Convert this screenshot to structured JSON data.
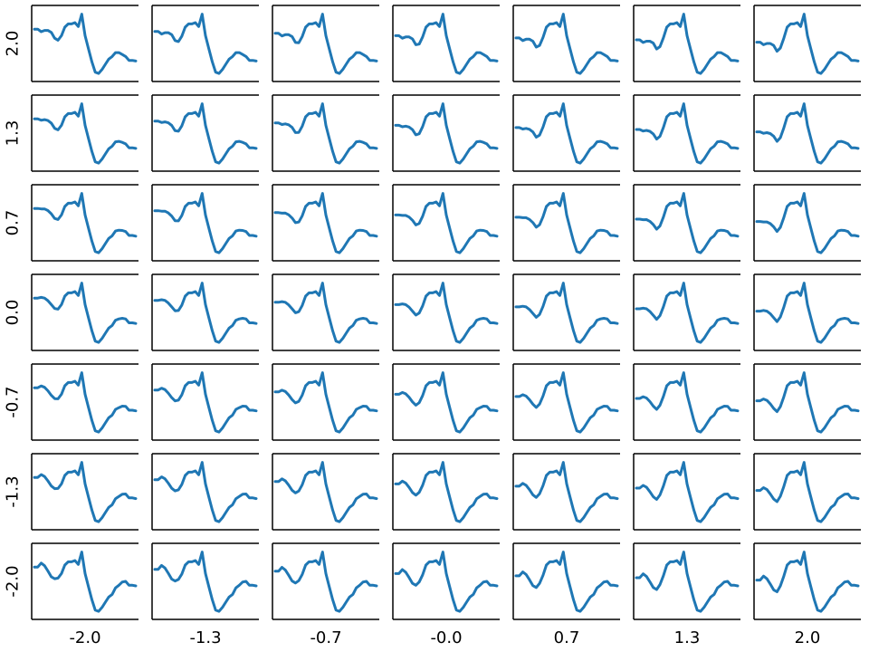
{
  "chart_data": {
    "type": "line",
    "layout": "small-multiples 7x7",
    "line_color": "#1f77b4",
    "axis_color": "#000000",
    "grid": false,
    "row_labels": [
      "2.0",
      "1.3",
      "0.7",
      "0.0",
      "-0.7",
      "-1.3",
      "-2.0"
    ],
    "col_labels": [
      "-2.0",
      "-1.3",
      "-0.7",
      "-0.0",
      "0.7",
      "1.3",
      "2.0"
    ],
    "x": [
      0,
      1,
      2,
      3,
      4,
      5,
      6,
      7,
      8,
      9,
      10,
      11,
      12,
      13,
      14,
      15,
      16,
      17,
      18,
      19,
      20,
      21,
      22,
      23,
      24,
      25,
      26,
      27,
      28,
      29,
      30
    ],
    "ylim": [
      0,
      1
    ],
    "series_rule": "the curve in each panel blends the following base curves by its row and column value",
    "base_curve": [
      0.62,
      0.62,
      0.63,
      0.62,
      0.58,
      0.52,
      0.46,
      0.49,
      0.6,
      0.75,
      0.8,
      0.8,
      0.82,
      0.76,
      0.95,
      0.62,
      0.42,
      0.22,
      0.06,
      0.04,
      0.1,
      0.18,
      0.26,
      0.3,
      0.38,
      0.4,
      0.41,
      0.4,
      0.34,
      0.34,
      0.33
    ],
    "shift_curve": [
      0.0,
      0.0,
      0.0,
      0.0,
      0.02,
      0.05,
      0.08,
      0.06,
      0.02,
      0.0,
      0.0,
      0.0,
      0.0,
      0.0,
      0.0,
      0.0,
      0.0,
      0.0,
      0.0,
      0.0,
      0.0,
      0.0,
      0.0,
      0.0,
      0.0,
      0.0,
      0.0,
      0.0,
      0.0,
      0.0,
      0.0
    ],
    "row_effect": [
      0.0,
      0.0,
      -0.05,
      -0.02,
      0.02,
      0.05,
      0.02,
      0.0,
      0.0,
      0.0,
      0.0,
      0.0,
      0.0,
      0.0,
      0.0,
      0.0,
      0.0,
      0.0,
      0.0,
      0.0,
      0.0,
      0.0,
      0.0,
      0.0,
      -0.02,
      -0.04,
      -0.08,
      -0.1,
      -0.1,
      -0.1,
      -0.1
    ],
    "col_effect": [
      -0.1,
      -0.1,
      -0.1,
      -0.1,
      -0.08,
      -0.05,
      -0.02,
      0.0,
      0.0,
      0.0,
      0.0,
      0.0,
      0.0,
      0.0,
      0.0,
      0.0,
      0.0,
      0.0,
      0.0,
      0.0,
      0.0,
      0.0,
      0.0,
      0.0,
      0.0,
      0.0,
      0.0,
      0.0,
      0.0,
      0.0,
      0.0
    ]
  }
}
